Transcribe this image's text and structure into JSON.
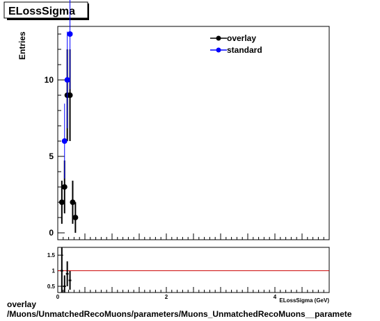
{
  "title": "ELossSigma",
  "footer": {
    "line1": "overlay",
    "line2": "/Muons/UnmatchedRecoMuons/parameters/Muons_UnmatchedRecoMuons__paramete"
  },
  "colors": {
    "overlay": "#000000",
    "standard": "#0000ff",
    "ratio_line": "#cc0000"
  },
  "chart_data": [
    {
      "type": "scatter",
      "title": "ELossSigma",
      "ylabel": "Entries",
      "xlabel": "ELossSigma (GeV)",
      "xlim": [
        0,
        5
      ],
      "ylim": [
        -0.45,
        13.5
      ],
      "y_ticks": [
        0,
        5,
        10
      ],
      "legend_position": "top-right",
      "series": [
        {
          "name": "overlay",
          "color": "#000000",
          "points": [
            {
              "x": 0.075,
              "y": 2,
              "err": 1.41
            },
            {
              "x": 0.125,
              "y": 3,
              "err": 1.73
            },
            {
              "x": 0.175,
              "y": 9,
              "err": 3
            },
            {
              "x": 0.225,
              "y": 9,
              "err": 3
            },
            {
              "x": 0.275,
              "y": 2,
              "err": 1.41
            },
            {
              "x": 0.325,
              "y": 1,
              "err": 1
            }
          ]
        },
        {
          "name": "standard",
          "color": "#0000ff",
          "points": [
            {
              "x": 0.125,
              "y": 6,
              "err": 2.45
            },
            {
              "x": 0.175,
              "y": 10,
              "err": 3.16
            },
            {
              "x": 0.225,
              "y": 13,
              "err": 3.61
            }
          ]
        }
      ]
    },
    {
      "type": "scatter",
      "xlabel": "ELossSigma (GeV)",
      "xlim": [
        0,
        5
      ],
      "ylim": [
        0.3,
        1.75
      ],
      "x_ticks": [
        0,
        2,
        4
      ],
      "y_ticks": [
        0.5,
        1,
        1.5
      ],
      "reference_line": 1,
      "series": [
        {
          "name": "ratio",
          "color": "#000000",
          "points": [
            {
              "x": 0.075,
              "y": 1.0,
              "err": 1.0
            },
            {
              "x": 0.125,
              "y": 0.5,
              "err": 0.35
            },
            {
              "x": 0.175,
              "y": 0.9,
              "err": 0.4
            },
            {
              "x": 0.225,
              "y": 0.69,
              "err": 0.3
            }
          ]
        }
      ]
    }
  ]
}
